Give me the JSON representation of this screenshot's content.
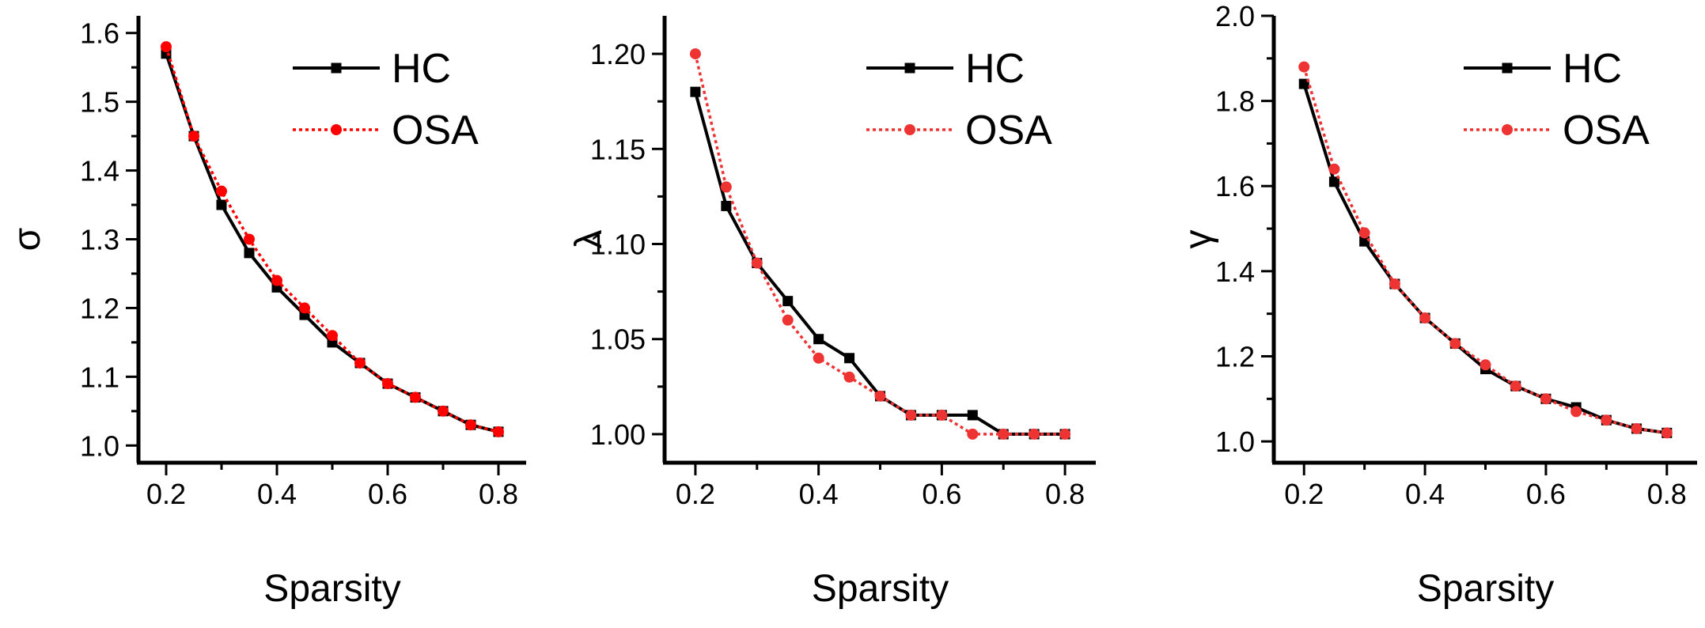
{
  "chart_data": [
    {
      "type": "line",
      "title": "",
      "xlabel": "Sparsity",
      "ylabel": "σ",
      "xlim": [
        0.15,
        0.85
      ],
      "ylim": [
        0.975,
        1.625
      ],
      "x_ticks": [
        0.2,
        0.4,
        0.6,
        0.8
      ],
      "x_tick_labels": [
        "0.2",
        "0.4",
        "0.6",
        "0.8"
      ],
      "y_ticks": [
        1.0,
        1.1,
        1.2,
        1.3,
        1.4,
        1.5,
        1.6
      ],
      "y_tick_labels": [
        "1.0",
        "1.1",
        "1.2",
        "1.3",
        "1.4",
        "1.5",
        "1.6"
      ],
      "legend_position": "top-right",
      "x": [
        0.2,
        0.25,
        0.3,
        0.35,
        0.4,
        0.45,
        0.5,
        0.55,
        0.6,
        0.65,
        0.7,
        0.75,
        0.8
      ],
      "series": [
        {
          "name": "HC",
          "color": "#000000",
          "style": "solid",
          "marker": "square",
          "values": [
            1.57,
            1.45,
            1.35,
            1.28,
            1.23,
            1.19,
            1.15,
            1.12,
            1.09,
            1.07,
            1.05,
            1.03,
            1.02
          ]
        },
        {
          "name": "OSA",
          "color": "#ff0000",
          "style": "dotted",
          "marker": "circle",
          "values": [
            1.58,
            1.45,
            1.37,
            1.3,
            1.24,
            1.2,
            1.16,
            1.12,
            1.09,
            1.07,
            1.05,
            1.03,
            1.02
          ]
        }
      ]
    },
    {
      "type": "line",
      "title": "",
      "xlabel": "Sparsity",
      "ylabel": "λ",
      "xlim": [
        0.15,
        0.85
      ],
      "ylim": [
        0.985,
        1.22
      ],
      "x_ticks": [
        0.2,
        0.4,
        0.6,
        0.8
      ],
      "x_tick_labels": [
        "0.2",
        "0.4",
        "0.6",
        "0.8"
      ],
      "y_ticks": [
        1.0,
        1.05,
        1.1,
        1.15,
        1.2
      ],
      "y_tick_labels": [
        "1.00",
        "1.05",
        "1.10",
        "1.15",
        "1.20"
      ],
      "legend_position": "top-right",
      "x": [
        0.2,
        0.25,
        0.3,
        0.35,
        0.4,
        0.45,
        0.5,
        0.55,
        0.6,
        0.65,
        0.7,
        0.75,
        0.8
      ],
      "series": [
        {
          "name": "HC",
          "color": "#000000",
          "style": "solid",
          "marker": "square",
          "values": [
            1.18,
            1.12,
            1.09,
            1.07,
            1.05,
            1.04,
            1.02,
            1.01,
            1.01,
            1.01,
            1.0,
            1.0,
            1.0
          ]
        },
        {
          "name": "OSA",
          "color": "#ee3333",
          "style": "dotted",
          "marker": "circle",
          "values": [
            1.2,
            1.13,
            1.09,
            1.06,
            1.04,
            1.03,
            1.02,
            1.01,
            1.01,
            1.0,
            1.0,
            1.0,
            1.0
          ]
        }
      ]
    },
    {
      "type": "line",
      "title": "",
      "xlabel": "Sparsity",
      "ylabel": "γ",
      "xlim": [
        0.15,
        0.85
      ],
      "ylim": [
        0.95,
        2.0
      ],
      "x_ticks": [
        0.2,
        0.4,
        0.6,
        0.8
      ],
      "x_tick_labels": [
        "0.2",
        "0.4",
        "0.6",
        "0.8"
      ],
      "y_ticks": [
        1.0,
        1.2,
        1.4,
        1.6,
        1.8,
        2.0
      ],
      "y_tick_labels": [
        "1.0",
        "1.2",
        "1.4",
        "1.6",
        "1.8",
        "2.0"
      ],
      "legend_position": "top-right",
      "x": [
        0.2,
        0.25,
        0.3,
        0.35,
        0.4,
        0.45,
        0.5,
        0.55,
        0.6,
        0.65,
        0.7,
        0.75,
        0.8
      ],
      "series": [
        {
          "name": "HC",
          "color": "#000000",
          "style": "solid",
          "marker": "square",
          "values": [
            1.84,
            1.61,
            1.47,
            1.37,
            1.29,
            1.23,
            1.17,
            1.13,
            1.1,
            1.08,
            1.05,
            1.03,
            1.02
          ]
        },
        {
          "name": "OSA",
          "color": "#ee3333",
          "style": "dotted",
          "marker": "circle",
          "values": [
            1.88,
            1.64,
            1.49,
            1.37,
            1.29,
            1.23,
            1.18,
            1.13,
            1.1,
            1.07,
            1.05,
            1.03,
            1.02
          ]
        }
      ]
    }
  ]
}
